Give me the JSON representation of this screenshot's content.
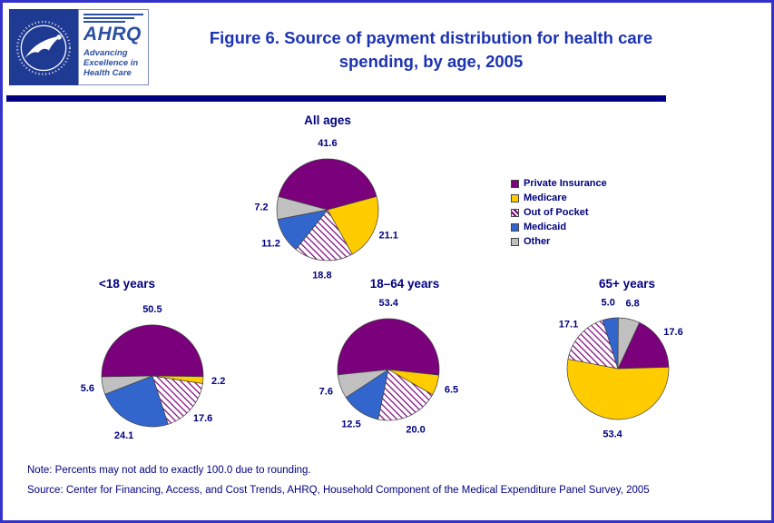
{
  "page": {
    "title_lines": [
      "Figure 6. Source of payment distribution for health care",
      "spending, by age, 2005"
    ]
  },
  "logos": {
    "ahrq_acronym": "AHRQ",
    "ahrq_tagline": [
      "Advancing",
      "Excellence in",
      "Health Care"
    ]
  },
  "legend": {
    "items": [
      {
        "label": "Private Insurance",
        "color": "#7B007B",
        "hatch": false
      },
      {
        "label": "Medicare",
        "color": "#FFCC00",
        "hatch": false
      },
      {
        "label": "Out of Pocket",
        "color": "#FFFFFF",
        "hatch": true
      },
      {
        "label": "Medicaid",
        "color": "#3366CC",
        "hatch": false
      },
      {
        "label": "Other",
        "color": "#C0C0C0",
        "hatch": false
      }
    ]
  },
  "chart_data": [
    {
      "type": "pie",
      "title": "All ages",
      "categories": [
        "Private Insurance",
        "Medicare",
        "Out of Pocket",
        "Medicaid",
        "Other"
      ],
      "values": [
        41.6,
        21.1,
        18.8,
        11.2,
        7.2
      ],
      "start_angle_deg": -75,
      "legend_position": "right",
      "labels_shown": true
    },
    {
      "type": "pie",
      "title": "<18 years",
      "categories": [
        "Private Insurance",
        "Medicare",
        "Out of Pocket",
        "Medicaid",
        "Other"
      ],
      "values": [
        50.5,
        2.2,
        17.6,
        24.1,
        5.6
      ],
      "start_angle_deg": -91,
      "labels_shown": true
    },
    {
      "type": "pie",
      "title": "18–64 years",
      "categories": [
        "Private Insurance",
        "Medicare",
        "Out of Pocket",
        "Medicaid",
        "Other"
      ],
      "values": [
        53.4,
        6.5,
        20.0,
        12.5,
        7.6
      ],
      "start_angle_deg": -96,
      "labels_shown": true
    },
    {
      "type": "pie",
      "title": "65+ years",
      "categories": [
        "Private Insurance",
        "Medicare",
        "Out of Pocket",
        "Medicaid",
        "Other"
      ],
      "values": [
        17.6,
        53.4,
        17.1,
        5.0,
        6.8
      ],
      "start_angle_deg": 25,
      "labels_shown": true
    }
  ],
  "notes": {
    "note": "Note: Percents may not add to exactly 100.0 due to rounding.",
    "source": "Source: Center for Financing, Access, and Cost Trends, AHRQ, Household Component of the Medical Expenditure Panel Survey, 2005"
  },
  "colors": {
    "border_blue": "#3333CC",
    "title_blue": "#1C33B2",
    "navy": "#000080",
    "hhs_blue": "#1F3A93",
    "ahrq_blue": "#2B4FA2",
    "private_insurance": "#7B007B",
    "medicare": "#FFCC00",
    "medicaid": "#3366CC",
    "other": "#C0C0C0",
    "slice_outline": "#404040"
  }
}
